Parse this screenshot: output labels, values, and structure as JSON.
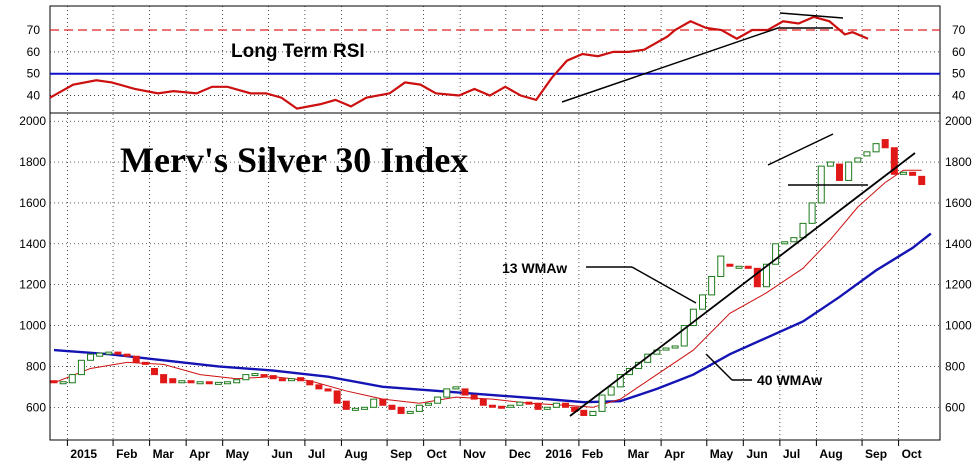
{
  "chart_data": {
    "type": "candlestick",
    "title": "Merv's Silver 30 Index",
    "main_y_ticks": [
      600,
      800,
      1000,
      1200,
      1400,
      1600,
      1800,
      2000
    ],
    "main_ylim": [
      440,
      2040
    ],
    "rsi_title": "Long Term RSI",
    "rsi_y_ticks": [
      40,
      50,
      60,
      70
    ],
    "rsi_ylim": [
      32,
      81
    ],
    "rsi_reference_lines": [
      {
        "value": 70,
        "style": "dashed",
        "color": "#e02020"
      },
      {
        "value": 50,
        "style": "solid",
        "color": "#1010c8"
      }
    ],
    "month_labels": [
      {
        "label": "2015",
        "week": 3
      },
      {
        "label": "Feb",
        "week": 8
      },
      {
        "label": "Mar",
        "week": 12
      },
      {
        "label": "Apr",
        "week": 16
      },
      {
        "label": "May",
        "week": 20
      },
      {
        "label": "Jun",
        "week": 25
      },
      {
        "label": "Jul",
        "week": 29
      },
      {
        "label": "Aug",
        "week": 33
      },
      {
        "label": "Sep",
        "week": 38
      },
      {
        "label": "Oct",
        "week": 42
      },
      {
        "label": "Nov",
        "week": 46
      },
      {
        "label": "Dec",
        "week": 51
      },
      {
        "label": "2016",
        "week": 55
      },
      {
        "label": "Feb",
        "week": 59
      },
      {
        "label": "Mar",
        "week": 64
      },
      {
        "label": "Apr",
        "week": 68
      },
      {
        "label": "May",
        "week": 73
      },
      {
        "label": "Jun",
        "week": 77
      },
      {
        "label": "Jul",
        "week": 81
      },
      {
        "label": "Aug",
        "week": 85
      },
      {
        "label": "Sep",
        "week": 90
      },
      {
        "label": "Oct",
        "week": 94
      }
    ],
    "weeks_visible": 97,
    "candles": [
      {
        "w": 0,
        "o": 730,
        "c": 720
      },
      {
        "w": 1,
        "o": 720,
        "c": 725
      },
      {
        "w": 2,
        "o": 720,
        "c": 760
      },
      {
        "w": 3,
        "o": 760,
        "c": 830
      },
      {
        "w": 4,
        "o": 830,
        "c": 860
      },
      {
        "w": 5,
        "o": 850,
        "c": 865
      },
      {
        "w": 6,
        "o": 860,
        "c": 870
      },
      {
        "w": 7,
        "o": 870,
        "c": 860
      },
      {
        "w": 8,
        "o": 860,
        "c": 850
      },
      {
        "w": 9,
        "o": 850,
        "c": 820
      },
      {
        "w": 10,
        "o": 820,
        "c": 810
      },
      {
        "w": 11,
        "o": 790,
        "c": 760
      },
      {
        "w": 12,
        "o": 760,
        "c": 720
      },
      {
        "w": 13,
        "o": 740,
        "c": 720
      },
      {
        "w": 14,
        "o": 720,
        "c": 730
      },
      {
        "w": 15,
        "o": 730,
        "c": 720
      },
      {
        "w": 16,
        "o": 720,
        "c": 725
      },
      {
        "w": 17,
        "o": 725,
        "c": 718
      },
      {
        "w": 18,
        "o": 718,
        "c": 722
      },
      {
        "w": 19,
        "o": 720,
        "c": 725
      },
      {
        "w": 20,
        "o": 720,
        "c": 735
      },
      {
        "w": 21,
        "o": 735,
        "c": 760
      },
      {
        "w": 22,
        "o": 760,
        "c": 765
      },
      {
        "w": 23,
        "o": 760,
        "c": 755
      },
      {
        "w": 24,
        "o": 755,
        "c": 740
      },
      {
        "w": 25,
        "o": 740,
        "c": 730
      },
      {
        "w": 26,
        "o": 735,
        "c": 740
      },
      {
        "w": 27,
        "o": 745,
        "c": 730
      },
      {
        "w": 28,
        "o": 730,
        "c": 710
      },
      {
        "w": 29,
        "o": 710,
        "c": 690
      },
      {
        "w": 30,
        "o": 690,
        "c": 680
      },
      {
        "w": 31,
        "o": 680,
        "c": 620
      },
      {
        "w": 32,
        "o": 630,
        "c": 590
      },
      {
        "w": 33,
        "o": 590,
        "c": 595
      },
      {
        "w": 34,
        "o": 590,
        "c": 600
      },
      {
        "w": 35,
        "o": 600,
        "c": 640
      },
      {
        "w": 36,
        "o": 640,
        "c": 610
      },
      {
        "w": 37,
        "o": 610,
        "c": 590
      },
      {
        "w": 38,
        "o": 600,
        "c": 570
      },
      {
        "w": 39,
        "o": 575,
        "c": 580
      },
      {
        "w": 40,
        "o": 580,
        "c": 610
      },
      {
        "w": 41,
        "o": 610,
        "c": 620
      },
      {
        "w": 42,
        "o": 620,
        "c": 650
      },
      {
        "w": 43,
        "o": 650,
        "c": 690
      },
      {
        "w": 44,
        "o": 690,
        "c": 700
      },
      {
        "w": 45,
        "o": 690,
        "c": 660
      },
      {
        "w": 46,
        "o": 660,
        "c": 640
      },
      {
        "w": 47,
        "o": 640,
        "c": 610
      },
      {
        "w": 48,
        "o": 610,
        "c": 605
      },
      {
        "w": 49,
        "o": 605,
        "c": 600
      },
      {
        "w": 50,
        "o": 600,
        "c": 610
      },
      {
        "w": 51,
        "o": 610,
        "c": 625
      },
      {
        "w": 52,
        "o": 625,
        "c": 620
      },
      {
        "w": 53,
        "o": 620,
        "c": 590
      },
      {
        "w": 54,
        "o": 590,
        "c": 600
      },
      {
        "w": 55,
        "o": 600,
        "c": 620
      },
      {
        "w": 56,
        "o": 620,
        "c": 600
      },
      {
        "w": 57,
        "o": 600,
        "c": 580
      },
      {
        "w": 58,
        "o": 585,
        "c": 560
      },
      {
        "w": 59,
        "o": 560,
        "c": 580
      },
      {
        "w": 60,
        "o": 580,
        "c": 660
      },
      {
        "w": 61,
        "o": 660,
        "c": 700
      },
      {
        "w": 62,
        "o": 700,
        "c": 760
      },
      {
        "w": 63,
        "o": 760,
        "c": 790
      },
      {
        "w": 64,
        "o": 790,
        "c": 820
      },
      {
        "w": 65,
        "o": 820,
        "c": 860
      },
      {
        "w": 66,
        "o": 860,
        "c": 880
      },
      {
        "w": 67,
        "o": 880,
        "c": 890
      },
      {
        "w": 68,
        "o": 890,
        "c": 900
      },
      {
        "w": 69,
        "o": 900,
        "c": 1000
      },
      {
        "w": 70,
        "o": 1000,
        "c": 1080
      },
      {
        "w": 71,
        "o": 1080,
        "c": 1150
      },
      {
        "w": 72,
        "o": 1150,
        "c": 1240
      },
      {
        "w": 73,
        "o": 1240,
        "c": 1340
      },
      {
        "w": 74,
        "o": 1300,
        "c": 1290
      },
      {
        "w": 75,
        "o": 1290,
        "c": 1290
      },
      {
        "w": 76,
        "o": 1290,
        "c": 1280
      },
      {
        "w": 77,
        "o": 1280,
        "c": 1190
      },
      {
        "w": 78,
        "o": 1190,
        "c": 1300
      },
      {
        "w": 79,
        "o": 1300,
        "c": 1400
      },
      {
        "w": 80,
        "o": 1400,
        "c": 1410
      },
      {
        "w": 81,
        "o": 1410,
        "c": 1430
      },
      {
        "w": 82,
        "o": 1430,
        "c": 1500
      },
      {
        "w": 83,
        "o": 1500,
        "c": 1600
      },
      {
        "w": 84,
        "o": 1600,
        "c": 1780
      },
      {
        "w": 85,
        "o": 1780,
        "c": 1800
      },
      {
        "w": 86,
        "o": 1790,
        "c": 1710
      },
      {
        "w": 87,
        "o": 1710,
        "c": 1800
      },
      {
        "w": 88,
        "o": 1800,
        "c": 1820
      },
      {
        "w": 89,
        "o": 1830,
        "c": 1850
      },
      {
        "w": 90,
        "o": 1850,
        "c": 1890
      },
      {
        "w": 91,
        "o": 1910,
        "c": 1870
      },
      {
        "w": 92,
        "o": 1870,
        "c": 1740
      },
      {
        "w": 93,
        "o": 1740,
        "c": 1750
      },
      {
        "w": 94,
        "o": 1750,
        "c": 1735
      },
      {
        "w": 95,
        "o": 1730,
        "c": 1690
      }
    ],
    "series": [
      {
        "name": "13 WMAw",
        "color": "#cc1010",
        "points": [
          [
            0,
            720
          ],
          [
            4,
            790
          ],
          [
            8,
            820
          ],
          [
            12,
            810
          ],
          [
            16,
            760
          ],
          [
            20,
            740
          ],
          [
            24,
            750
          ],
          [
            28,
            730
          ],
          [
            32,
            680
          ],
          [
            36,
            640
          ],
          [
            40,
            620
          ],
          [
            44,
            650
          ],
          [
            48,
            640
          ],
          [
            52,
            620
          ],
          [
            56,
            610
          ],
          [
            59,
            600
          ],
          [
            62,
            640
          ],
          [
            66,
            760
          ],
          [
            70,
            880
          ],
          [
            74,
            1060
          ],
          [
            78,
            1160
          ],
          [
            82,
            1280
          ],
          [
            85,
            1420
          ],
          [
            88,
            1580
          ],
          [
            91,
            1700
          ],
          [
            93,
            1760
          ],
          [
            95,
            1760
          ]
        ]
      },
      {
        "name": "40 WMAw",
        "color": "#1414b4",
        "points": [
          [
            0,
            880
          ],
          [
            6,
            860
          ],
          [
            12,
            830
          ],
          [
            18,
            800
          ],
          [
            24,
            780
          ],
          [
            30,
            750
          ],
          [
            36,
            700
          ],
          [
            42,
            680
          ],
          [
            48,
            660
          ],
          [
            54,
            640
          ],
          [
            58,
            625
          ],
          [
            62,
            630
          ],
          [
            66,
            690
          ],
          [
            70,
            760
          ],
          [
            74,
            860
          ],
          [
            78,
            940
          ],
          [
            82,
            1020
          ],
          [
            86,
            1140
          ],
          [
            90,
            1270
          ],
          [
            94,
            1380
          ],
          [
            96,
            1450
          ]
        ]
      },
      {
        "name": "Long Term RSI",
        "color": "#cc1010",
        "points": [
          [
            0,
            39
          ],
          [
            3,
            45
          ],
          [
            6,
            47
          ],
          [
            8,
            46
          ],
          [
            11,
            43
          ],
          [
            14,
            41
          ],
          [
            16,
            42
          ],
          [
            19,
            41
          ],
          [
            21,
            44
          ],
          [
            23,
            44
          ],
          [
            26,
            41
          ],
          [
            28,
            41
          ],
          [
            30,
            39
          ],
          [
            32,
            34
          ],
          [
            35,
            36
          ],
          [
            37,
            38
          ],
          [
            39,
            35
          ],
          [
            41,
            39
          ],
          [
            44,
            41
          ],
          [
            46,
            46
          ],
          [
            48,
            45
          ],
          [
            50,
            41
          ],
          [
            53,
            40
          ],
          [
            55,
            43
          ],
          [
            57,
            40
          ],
          [
            59,
            44
          ],
          [
            61,
            40
          ],
          [
            63,
            38
          ],
          [
            65,
            48
          ],
          [
            67,
            56
          ],
          [
            69,
            59
          ],
          [
            71,
            58
          ],
          [
            73,
            60
          ],
          [
            75,
            60
          ],
          [
            77,
            61
          ],
          [
            80,
            67
          ],
          [
            81,
            70
          ],
          [
            83,
            74
          ],
          [
            85,
            71
          ],
          [
            87,
            70
          ],
          [
            89,
            66
          ],
          [
            91,
            70
          ],
          [
            93,
            70
          ],
          [
            95,
            74
          ],
          [
            97,
            73
          ],
          [
            99,
            76
          ],
          [
            101,
            74
          ],
          [
            103,
            68
          ],
          [
            104,
            69
          ],
          [
            106,
            66
          ]
        ]
      }
    ],
    "annotations": [
      {
        "text": "13 WMAw",
        "points_to": "13 WMAw"
      },
      {
        "text": "40 WMAw",
        "points_to": "40 WMAw"
      }
    ]
  }
}
